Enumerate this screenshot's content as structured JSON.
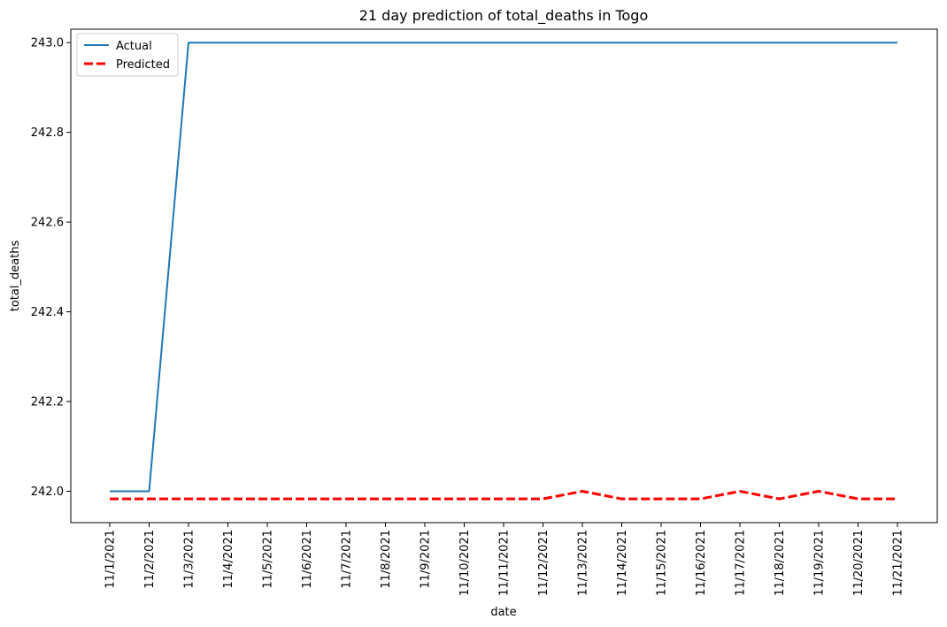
{
  "chart_data": {
    "type": "line",
    "title": "21 day prediction of total_deaths in Togo",
    "xlabel": "date",
    "ylabel": "total_deaths",
    "categories": [
      "11/1/2021",
      "11/2/2021",
      "11/3/2021",
      "11/4/2021",
      "11/5/2021",
      "11/6/2021",
      "11/7/2021",
      "11/8/2021",
      "11/9/2021",
      "11/10/2021",
      "11/11/2021",
      "11/12/2021",
      "11/13/2021",
      "11/14/2021",
      "11/15/2021",
      "11/16/2021",
      "11/17/2021",
      "11/18/2021",
      "11/19/2021",
      "11/20/2021",
      "11/21/2021"
    ],
    "yticks": [
      "242.0",
      "242.2",
      "242.4",
      "242.6",
      "242.8",
      "243.0"
    ],
    "ylim": [
      241.93,
      243.03
    ],
    "series": [
      {
        "name": "Actual",
        "color": "#1f77b4",
        "style": "solid",
        "values": [
          242.0,
          242.0,
          243.0,
          243.0,
          243.0,
          243.0,
          243.0,
          243.0,
          243.0,
          243.0,
          243.0,
          243.0,
          243.0,
          243.0,
          243.0,
          243.0,
          243.0,
          243.0,
          243.0,
          243.0,
          243.0
        ]
      },
      {
        "name": "Predicted",
        "color": "#ff0000",
        "style": "dashed",
        "values": [
          241.983,
          241.983,
          241.983,
          241.983,
          241.983,
          241.983,
          241.983,
          241.983,
          241.983,
          241.983,
          241.983,
          241.983,
          242.0,
          241.983,
          241.983,
          241.983,
          242.0,
          241.983,
          242.0,
          241.983,
          241.983
        ]
      }
    ],
    "legend": "top-left",
    "grid": false
  }
}
